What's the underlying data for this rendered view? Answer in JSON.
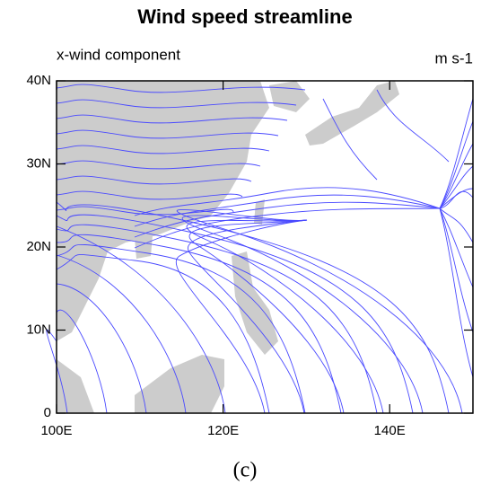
{
  "chart_data": {
    "type": "map",
    "title": "Wind speed streamline",
    "subtitle_left": "x-wind component",
    "subtitle_right": "m s-1",
    "caption": "(c)",
    "xlim": [
      100,
      150
    ],
    "ylim": [
      0,
      40
    ],
    "xticks": [
      {
        "value": 100,
        "label": "100E"
      },
      {
        "value": 120,
        "label": "120E"
      },
      {
        "value": 140,
        "label": "140E"
      }
    ],
    "yticks": [
      0,
      {
        "value": 10,
        "label": "10N"
      },
      {
        "value": 20,
        "label": "20N"
      },
      {
        "value": 30,
        "label": "30N"
      },
      {
        "value": 40,
        "label": "40N"
      }
    ],
    "land_color": "#cccccc",
    "streamline_color": "#4a4aff"
  }
}
